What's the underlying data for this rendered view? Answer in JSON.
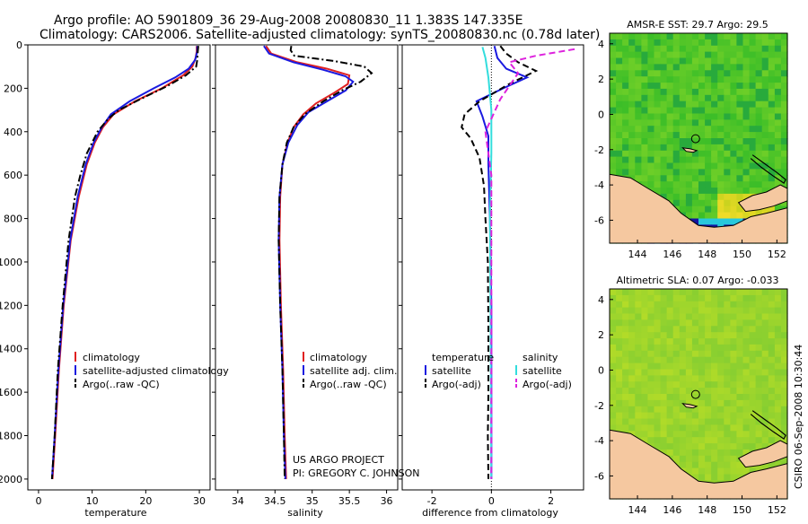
{
  "title": {
    "line1": "Argo profile: AO 5901809_36 29-Aug-2008 20080830_11 1.383S 147.335E",
    "line2": "Climatology: CARS2006. Satellite-adjusted climatology: synTS_20080830.nc (0.78d later)"
  },
  "credits": {
    "project": "US ARGO PROJECT",
    "pi": "PI: GREGORY C. JOHNSON",
    "stamp": "CSIRO 06-Sep-2008 10:30:44"
  },
  "colors": {
    "climatology": "#e02020",
    "satellite": "#1a1ae0",
    "argo": "#000000",
    "salinity_satellite": "#33dddd",
    "salinity_argo": "#dd22dd",
    "land": "#f5c8a0"
  },
  "chart_data": [
    {
      "type": "line",
      "id": "temperature",
      "xlabel": "temperature",
      "ylabel": "",
      "xlim": [
        -2,
        32
      ],
      "ylim": [
        2050,
        0
      ],
      "xticks": [
        0,
        10,
        20,
        30
      ],
      "yticks": [
        0,
        200,
        400,
        600,
        800,
        1000,
        1200,
        1400,
        1600,
        1800,
        2000
      ],
      "legend": [
        "climatology",
        "satellite-adjusted climatology",
        "Argo(..raw -QC)"
      ],
      "series": [
        {
          "name": "climatology",
          "style": "solid",
          "color": "#e02020",
          "points": [
            [
              29.5,
              5
            ],
            [
              29.5,
              30
            ],
            [
              29.3,
              60
            ],
            [
              28.7,
              100
            ],
            [
              27,
              140
            ],
            [
              23,
              200
            ],
            [
              18,
              260
            ],
            [
              14,
              320
            ],
            [
              12,
              380
            ],
            [
              10.5,
              450
            ],
            [
              9,
              550
            ],
            [
              7.5,
              700
            ],
            [
              6,
              900
            ],
            [
              4.7,
              1200
            ],
            [
              3.8,
              1500
            ],
            [
              3.1,
              1800
            ],
            [
              2.6,
              2000
            ]
          ]
        },
        {
          "name": "satellite-adjusted climatology",
          "style": "solid",
          "color": "#1a1ae0",
          "points": [
            [
              29.6,
              5
            ],
            [
              29.6,
              30
            ],
            [
              29.2,
              70
            ],
            [
              28,
              110
            ],
            [
              25.5,
              150
            ],
            [
              21.5,
              200
            ],
            [
              17,
              260
            ],
            [
              13.5,
              320
            ],
            [
              11.8,
              380
            ],
            [
              10.3,
              450
            ],
            [
              8.8,
              550
            ],
            [
              7.3,
              700
            ],
            [
              5.9,
              900
            ],
            [
              4.6,
              1200
            ],
            [
              3.7,
              1500
            ],
            [
              3,
              1800
            ],
            [
              2.5,
              2000
            ]
          ]
        },
        {
          "name": "Argo(..raw -QC)",
          "style": "dashdot",
          "color": "#000000",
          "points": [
            [
              29.8,
              5
            ],
            [
              29.7,
              30
            ],
            [
              29.6,
              70
            ],
            [
              29.4,
              100
            ],
            [
              27.5,
              140
            ],
            [
              24,
              190
            ],
            [
              19,
              250
            ],
            [
              15,
              300
            ],
            [
              13,
              340
            ],
            [
              11,
              400
            ],
            [
              9,
              500
            ],
            [
              7.8,
              600
            ],
            [
              6.8,
              700
            ],
            [
              5.6,
              900
            ],
            [
              4.5,
              1200
            ],
            [
              3.6,
              1500
            ],
            [
              3,
              1800
            ],
            [
              2.5,
              2000
            ]
          ]
        }
      ]
    },
    {
      "type": "line",
      "id": "salinity",
      "xlabel": "salinity",
      "ylabel": "",
      "xlim": [
        33.7,
        36.15
      ],
      "ylim": [
        2050,
        0
      ],
      "xticks": [
        34,
        34.5,
        35,
        35.5,
        36
      ],
      "legend": [
        "climatology",
        "satellite adj. clim.",
        "Argo(..raw -QC)"
      ],
      "series": [
        {
          "name": "climatology",
          "style": "solid",
          "color": "#e02020",
          "points": [
            [
              34.38,
              5
            ],
            [
              34.45,
              40
            ],
            [
              34.8,
              80
            ],
            [
              35.2,
              110
            ],
            [
              35.5,
              140
            ],
            [
              35.48,
              180
            ],
            [
              35.3,
              220
            ],
            [
              35.05,
              270
            ],
            [
              34.88,
              320
            ],
            [
              34.75,
              380
            ],
            [
              34.67,
              450
            ],
            [
              34.6,
              550
            ],
            [
              34.57,
              700
            ],
            [
              34.56,
              900
            ],
            [
              34.58,
              1200
            ],
            [
              34.61,
              1500
            ],
            [
              34.63,
              1800
            ],
            [
              34.65,
              2000
            ]
          ]
        },
        {
          "name": "satellite adj. clim.",
          "style": "solid",
          "color": "#1a1ae0",
          "points": [
            [
              34.35,
              5
            ],
            [
              34.42,
              40
            ],
            [
              34.75,
              80
            ],
            [
              35.15,
              115
            ],
            [
              35.45,
              145
            ],
            [
              35.55,
              170
            ],
            [
              35.45,
              210
            ],
            [
              35.2,
              260
            ],
            [
              34.95,
              310
            ],
            [
              34.8,
              370
            ],
            [
              34.68,
              450
            ],
            [
              34.6,
              550
            ],
            [
              34.56,
              700
            ],
            [
              34.55,
              900
            ],
            [
              34.57,
              1200
            ],
            [
              34.6,
              1500
            ],
            [
              34.62,
              1800
            ],
            [
              34.64,
              2000
            ]
          ]
        },
        {
          "name": "Argo(..raw -QC)",
          "style": "dashdot",
          "color": "#000000",
          "points": [
            [
              34.72,
              5
            ],
            [
              34.71,
              25
            ],
            [
              34.76,
              50
            ],
            [
              35.3,
              75
            ],
            [
              35.7,
              100
            ],
            [
              35.8,
              130
            ],
            [
              35.65,
              170
            ],
            [
              35.4,
              210
            ],
            [
              35.15,
              260
            ],
            [
              34.9,
              320
            ],
            [
              34.75,
              380
            ],
            [
              34.66,
              450
            ],
            [
              34.6,
              550
            ],
            [
              34.56,
              700
            ],
            [
              34.55,
              900
            ],
            [
              34.57,
              1200
            ],
            [
              34.6,
              1500
            ],
            [
              34.62,
              1800
            ],
            [
              34.63,
              2000
            ]
          ]
        }
      ]
    },
    {
      "type": "line",
      "id": "difference",
      "xlabel": "difference from climatology",
      "ylabel": "",
      "xlim": [
        -3,
        3.1
      ],
      "ylim": [
        2050,
        0
      ],
      "xticks": [
        -2,
        0,
        2
      ],
      "legend_groups": [
        {
          "title": "temperature",
          "entries": [
            "satellite",
            "Argo(-adj)"
          ]
        },
        {
          "title": "salinity",
          "entries": [
            "satellite",
            "Argo(-adj)"
          ]
        }
      ],
      "series": [
        {
          "name": "temperature satellite",
          "style": "solid",
          "color": "#1a1ae0",
          "points": [
            [
              0.1,
              5
            ],
            [
              0.2,
              60
            ],
            [
              0.5,
              110
            ],
            [
              1.2,
              150
            ],
            [
              0.4,
              200
            ],
            [
              -0.5,
              260
            ],
            [
              -0.3,
              330
            ],
            [
              -0.1,
              420
            ],
            [
              -0.1,
              550
            ],
            [
              -0.05,
              800
            ],
            [
              0,
              1200
            ],
            [
              0,
              2000
            ]
          ]
        },
        {
          "name": "temperature Argo(-adj)",
          "style": "dashed",
          "color": "#000000",
          "points": [
            [
              0.3,
              5
            ],
            [
              0.5,
              40
            ],
            [
              0.9,
              80
            ],
            [
              1.5,
              120
            ],
            [
              0.6,
              180
            ],
            [
              -0.4,
              260
            ],
            [
              -0.9,
              320
            ],
            [
              -1,
              380
            ],
            [
              -0.7,
              430
            ],
            [
              -0.4,
              520
            ],
            [
              -0.25,
              650
            ],
            [
              -0.2,
              800
            ],
            [
              -0.12,
              1000
            ],
            [
              -0.1,
              1300
            ],
            [
              -0.1,
              1600
            ],
            [
              -0.12,
              1800
            ],
            [
              -0.1,
              2000
            ]
          ]
        },
        {
          "name": "salinity satellite",
          "style": "solid",
          "color": "#33dddd",
          "points": [
            [
              -0.3,
              10
            ],
            [
              -0.2,
              60
            ],
            [
              -0.1,
              150
            ],
            [
              0,
              300
            ],
            [
              0,
              500
            ],
            [
              -0.05,
              800
            ],
            [
              -0.03,
              1200
            ],
            [
              0,
              2000
            ]
          ]
        },
        {
          "name": "salinity Argo(-adj)",
          "style": "dashed",
          "color": "#dd22dd",
          "points": [
            [
              2.8,
              20
            ],
            [
              1.5,
              50
            ],
            [
              0.6,
              80
            ],
            [
              0.9,
              130
            ],
            [
              0.3,
              250
            ],
            [
              -0.2,
              400
            ],
            [
              -0.1,
              500
            ],
            [
              0,
              600
            ],
            [
              0,
              800
            ],
            [
              0,
              1200
            ],
            [
              0,
              2000
            ]
          ]
        }
      ]
    },
    {
      "type": "heatmap",
      "id": "sst-map",
      "title": "AMSR-E SST: 29.7 Argo: 29.5",
      "xlim": [
        142.4,
        152.6
      ],
      "ylim": [
        -7.3,
        4.6
      ],
      "xticks": [
        144,
        146,
        148,
        150,
        152
      ],
      "yticks": [
        4,
        2,
        0,
        -2,
        -4,
        -6
      ],
      "marker": [
        147.335,
        -1.383
      ]
    },
    {
      "type": "heatmap",
      "id": "sla-map",
      "title": "Altimetric SLA: 0.07 Argo: -0.033",
      "xlim": [
        142.4,
        152.6
      ],
      "ylim": [
        -7.3,
        4.6
      ],
      "xticks": [
        144,
        146,
        148,
        150,
        152
      ],
      "yticks": [
        4,
        2,
        0,
        -2,
        -4,
        -6
      ],
      "marker": [
        147.335,
        -1.383
      ]
    }
  ]
}
